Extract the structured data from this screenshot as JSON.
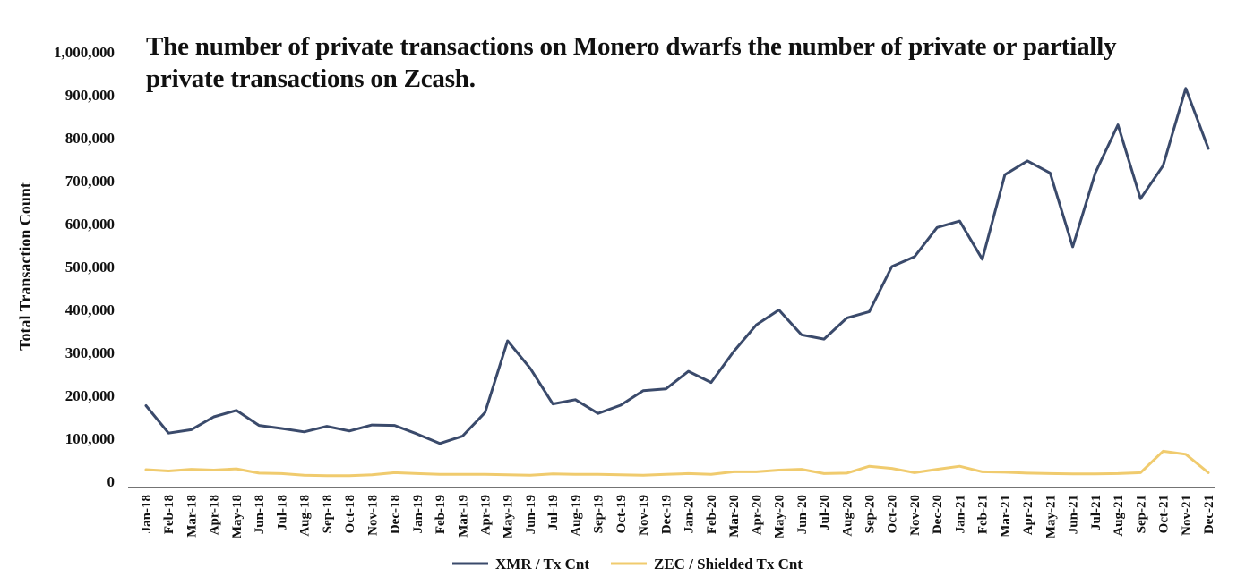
{
  "chart_data": {
    "type": "line",
    "title": "The number of private transactions on Monero dwarfs the number of private or partially private transactions on Zcash.",
    "xlabel": "",
    "ylabel": "Total Transaction Count",
    "ylim": [
      0,
      1000000
    ],
    "yticks": [
      "0",
      "100,000",
      "200,000",
      "300,000",
      "400,000",
      "500,000",
      "600,000",
      "700,000",
      "800,000",
      "900,000",
      "1,000,000"
    ],
    "grid": false,
    "legend": "bottom",
    "categories": [
      "Jan-18",
      "Feb-18",
      "Mar-18",
      "Apr-18",
      "May-18",
      "Jun-18",
      "Jul-18",
      "Aug-18",
      "Sep-18",
      "Oct-18",
      "Nov-18",
      "Dec-18",
      "Jan-19",
      "Feb-19",
      "Mar-19",
      "Apr-19",
      "May-19",
      "Jun-19",
      "Jul-19",
      "Aug-19",
      "Sep-19",
      "Oct-19",
      "Nov-19",
      "Dec-19",
      "Jan-20",
      "Feb-20",
      "Mar-20",
      "Apr-20",
      "May-20",
      "Jun-20",
      "Jul-20",
      "Aug-20",
      "Sep-20",
      "Oct-20",
      "Nov-20",
      "Dec-20",
      "Jan-21",
      "Feb-21",
      "Mar-21",
      "Apr-21",
      "May-21",
      "Jun-21",
      "Jul-21",
      "Aug-21",
      "Sep-21",
      "Oct-21",
      "Nov-21",
      "Dec-21"
    ],
    "series": [
      {
        "name": "XMR / Tx Cnt",
        "color": "#3a4a6b",
        "values": [
          176000,
          112000,
          120000,
          150000,
          165000,
          130000,
          123000,
          115000,
          128000,
          117000,
          131000,
          130000,
          110000,
          88000,
          105000,
          160000,
          327000,
          263000,
          180000,
          190000,
          158000,
          177000,
          211000,
          215000,
          256000,
          230000,
          302000,
          364000,
          399000,
          341000,
          331000,
          380000,
          395000,
          500000,
          523000,
          591000,
          606000,
          517000,
          714000,
          746000,
          718000,
          546000,
          718000,
          830000,
          658000,
          735000,
          915000,
          775000
        ]
      },
      {
        "name": "ZEC / Shielded Tx Cnt",
        "color": "#f0cb6e",
        "values": [
          27000,
          24000,
          28000,
          26000,
          29000,
          19000,
          18000,
          14000,
          13000,
          13000,
          15000,
          20000,
          18000,
          16000,
          16000,
          16000,
          15000,
          14000,
          17000,
          16000,
          16000,
          15000,
          14000,
          16000,
          18000,
          16000,
          22000,
          22000,
          26000,
          28000,
          18000,
          19000,
          35000,
          30000,
          20000,
          28000,
          35000,
          22000,
          21000,
          19000,
          18000,
          17000,
          17000,
          18000,
          20000,
          70000,
          63000,
          20000
        ]
      }
    ]
  }
}
